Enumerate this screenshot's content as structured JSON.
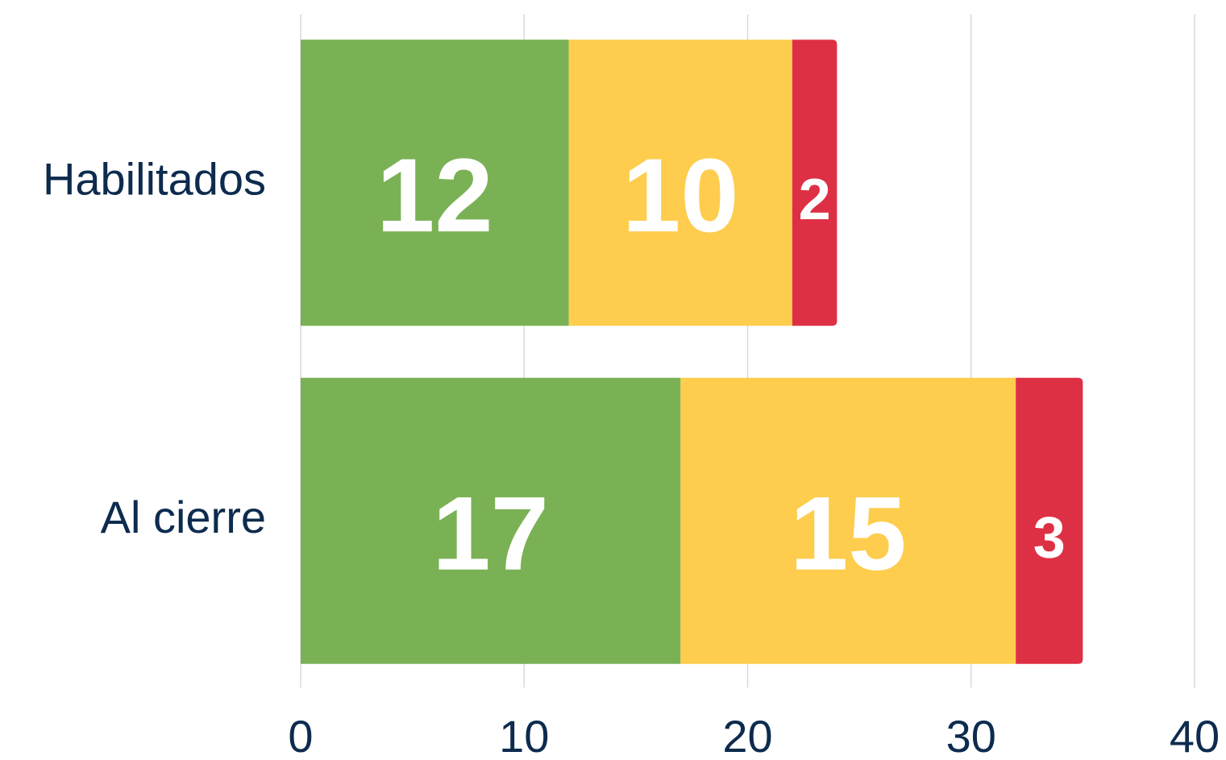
{
  "chart_data": {
    "type": "bar",
    "orientation": "horizontal",
    "stacked": true,
    "categories": [
      "Habilitados",
      "Al cierre"
    ],
    "series": [
      {
        "color": "#7ab155",
        "values": [
          12,
          17
        ]
      },
      {
        "color": "#fecd4d",
        "values": [
          10,
          15
        ]
      },
      {
        "color": "#de3044",
        "values": [
          2,
          3
        ]
      }
    ],
    "xlim": [
      0,
      40
    ],
    "xticks": [
      0,
      10,
      20,
      30,
      40
    ],
    "grid": true
  }
}
